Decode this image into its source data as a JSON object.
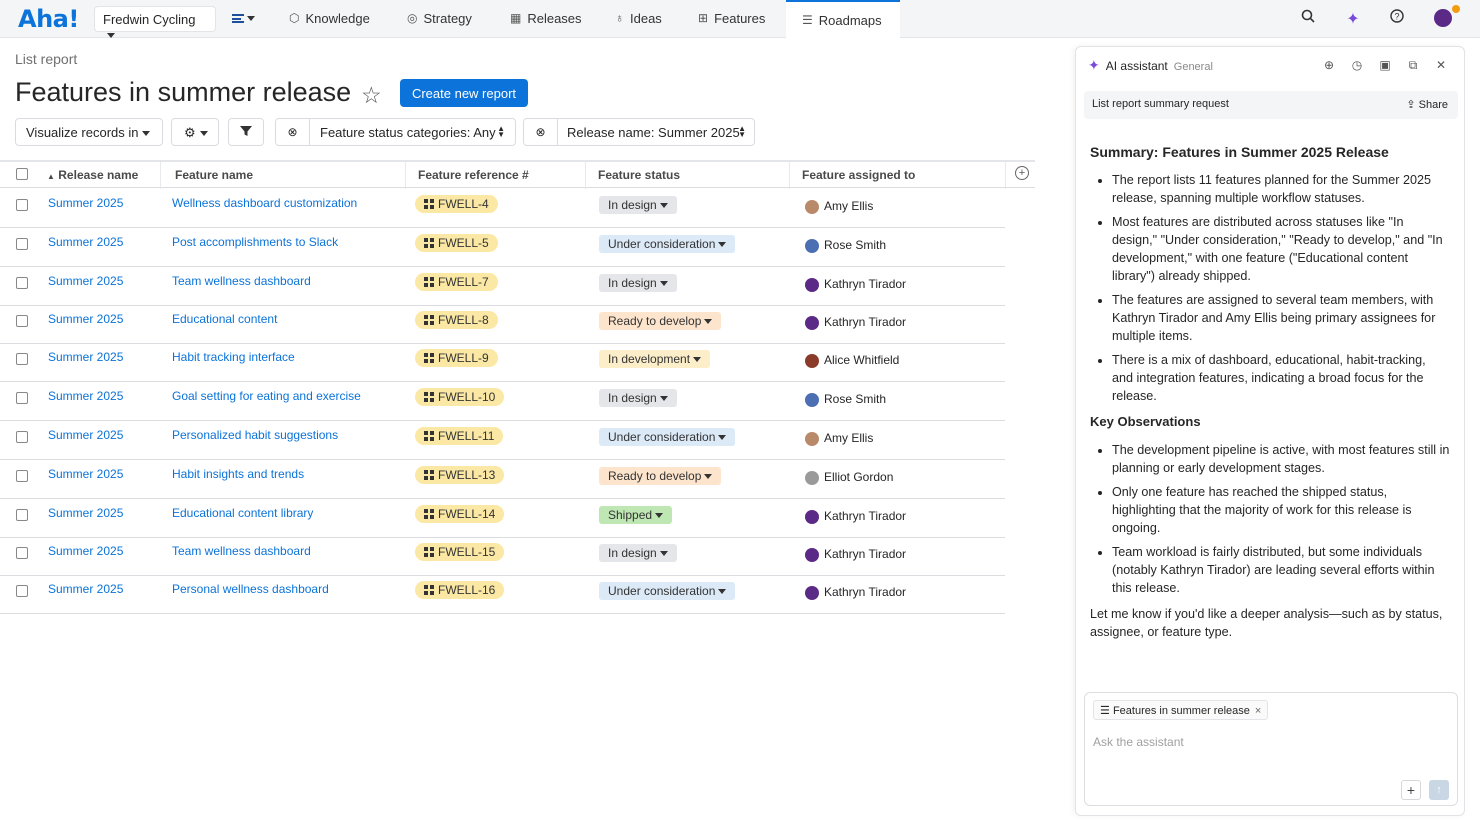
{
  "nav": {
    "logo": "Aha!",
    "workspace": "Fredwin Cycling",
    "tabs": [
      {
        "label": "Knowledge",
        "icon": "cube-icon"
      },
      {
        "label": "Strategy",
        "icon": "target-icon"
      },
      {
        "label": "Releases",
        "icon": "calendar-icon"
      },
      {
        "label": "Ideas",
        "icon": "lightbulb-icon"
      },
      {
        "label": "Features",
        "icon": "grid-icon"
      },
      {
        "label": "Roadmaps",
        "icon": "roadmap-icon"
      }
    ],
    "active_tab": "Roadmaps"
  },
  "page": {
    "breadcrumb": "List report",
    "title": "Features in summer release",
    "create_button": "Create new report"
  },
  "filters": {
    "visualize": "Visualize records in",
    "status_filter": "Feature status categories: Any",
    "release_filter": "Release name: Summer 2025"
  },
  "table": {
    "columns": [
      "Release name",
      "Feature name",
      "Feature reference #",
      "Feature status",
      "Feature assigned to"
    ],
    "rows": [
      {
        "release": "Summer 2025",
        "feature": "Wellness dashboard customization",
        "ref": "FWELL-4",
        "status": "In design",
        "assignee": "Amy Ellis"
      },
      {
        "release": "Summer 2025",
        "feature": "Post accomplishments to Slack",
        "ref": "FWELL-5",
        "status": "Under consideration",
        "assignee": "Rose Smith"
      },
      {
        "release": "Summer 2025",
        "feature": "Team wellness dashboard",
        "ref": "FWELL-7",
        "status": "In design",
        "assignee": "Kathryn Tirador"
      },
      {
        "release": "Summer 2025",
        "feature": "Educational content",
        "ref": "FWELL-8",
        "status": "Ready to develop",
        "assignee": "Kathryn Tirador"
      },
      {
        "release": "Summer 2025",
        "feature": "Habit tracking interface",
        "ref": "FWELL-9",
        "status": "In development",
        "assignee": "Alice Whitfield"
      },
      {
        "release": "Summer 2025",
        "feature": "Goal setting for eating and exercise",
        "ref": "FWELL-10",
        "status": "In design",
        "assignee": "Rose Smith"
      },
      {
        "release": "Summer 2025",
        "feature": "Personalized habit suggestions",
        "ref": "FWELL-11",
        "status": "Under consideration",
        "assignee": "Amy Ellis"
      },
      {
        "release": "Summer 2025",
        "feature": "Habit insights and trends",
        "ref": "FWELL-13",
        "status": "Ready to develop",
        "assignee": "Elliot Gordon"
      },
      {
        "release": "Summer 2025",
        "feature": "Educational content library",
        "ref": "FWELL-14",
        "status": "Shipped",
        "assignee": "Kathryn Tirador"
      },
      {
        "release": "Summer 2025",
        "feature": "Team wellness dashboard",
        "ref": "FWELL-15",
        "status": "In design",
        "assignee": "Kathryn Tirador"
      },
      {
        "release": "Summer 2025",
        "feature": "Personal wellness dashboard",
        "ref": "FWELL-16",
        "status": "Under consideration",
        "assignee": "Kathryn Tirador"
      }
    ]
  },
  "assistant": {
    "title": "AI assistant",
    "scope": "General",
    "request": "List report summary request",
    "share": "Share",
    "summary_heading": "Summary: Features in Summer 2025 Release",
    "summary_points": [
      "The report lists 11 features planned for the Summer 2025 release, spanning multiple workflow statuses.",
      "Most features are distributed across statuses like \"In design,\" \"Under consideration,\" \"Ready to develop,\" and \"In development,\" with one feature (\"Educational content library\") already shipped.",
      "The features are assigned to several team members, with Kathryn Tirador and Amy Ellis being primary assignees for multiple items.",
      "There is a mix of dashboard, educational, habit-tracking, and integration features, indicating a broad focus for the release."
    ],
    "observations_heading": "Key Observations",
    "observations": [
      "The development pipeline is active, with most features still in planning or early development stages.",
      "Only one feature has reached the shipped status, highlighting that the majority of work for this release is ongoing.",
      "Team workload is fairly distributed, but some individuals (notably Kathryn Tirador) are leading several efforts within this release."
    ],
    "closing": "Let me know if you'd like a deeper analysis—such as by status, assignee, or feature type.",
    "context_chip": "Features in summer release",
    "input_placeholder": "Ask the assistant"
  },
  "colors": {
    "brand": "#0b73d9",
    "accent_purple": "#7a4ad8",
    "ref_badge": "#fbe8a4",
    "shipped": "#bfe7b4"
  }
}
